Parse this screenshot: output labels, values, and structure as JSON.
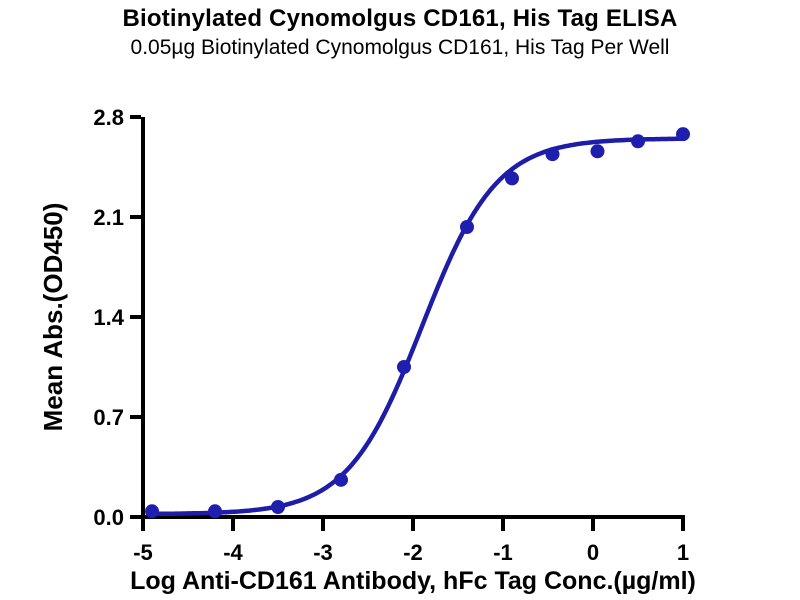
{
  "chart_data": {
    "type": "scatter",
    "title": "Biotinylated Cynomolgus CD161, His Tag ELISA",
    "subtitle": "0.05µg Biotinylated Cynomolgus CD161, His Tag Per Well",
    "xlabel": "Log Anti-CD161 Antibody, hFc Tag Conc.(µg/ml)",
    "ylabel": "Mean Abs.(OD450)",
    "xlim": [
      -5,
      1
    ],
    "ylim": [
      0,
      2.8
    ],
    "x_ticks": [
      -5,
      -4,
      -3,
      -2,
      -1,
      0,
      1
    ],
    "y_ticks": [
      0.0,
      0.7,
      1.4,
      2.1,
      2.8
    ],
    "grid": false,
    "legend_position": "none",
    "series": [
      {
        "name": "Anti-CD161 Antibody, hFc Tag",
        "x": [
          -4.9,
          -4.2,
          -3.5,
          -2.8,
          -2.1,
          -1.4,
          -0.9,
          -0.45,
          0.05,
          0.5,
          1.0
        ],
        "y": [
          0.04,
          0.04,
          0.07,
          0.26,
          1.05,
          2.03,
          2.37,
          2.54,
          2.56,
          2.63,
          2.68
        ]
      }
    ],
    "fit_curve": {
      "model": "4PL",
      "bottom": 0.02,
      "top": 2.65,
      "log_ec50": -1.9,
      "hill": 1.05,
      "x_start": -4.9,
      "x_end": 1.0
    },
    "colors": {
      "curve": "#1d1da8",
      "points": "#1f1faf",
      "axis": "#000000",
      "text": "#000000",
      "background": "#ffffff"
    }
  }
}
